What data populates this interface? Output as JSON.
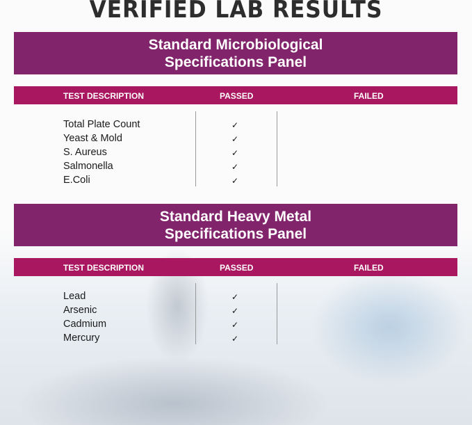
{
  "title": "VERIFIED LAB RESULTS",
  "colors": {
    "banner": "#82246b",
    "header": "#a8175f"
  },
  "columns": [
    "TEST DESCRIPTION",
    "PASSED",
    "FAILED"
  ],
  "panels": [
    {
      "title_line1": "Standard Microbiological",
      "title_line2": "Specifications Panel",
      "tests": [
        {
          "name": "Total Plate Count",
          "passed": "✓",
          "failed": ""
        },
        {
          "name": "Yeast & Mold",
          "passed": "✓",
          "failed": ""
        },
        {
          "name": "S. Aureus",
          "passed": "✓",
          "failed": ""
        },
        {
          "name": "Salmonella",
          "passed": "✓",
          "failed": ""
        },
        {
          "name": "E.Coli",
          "passed": "✓",
          "failed": ""
        }
      ]
    },
    {
      "title_line1": "Standard Heavy Metal",
      "title_line2": "Specifications Panel",
      "tests": [
        {
          "name": "Lead",
          "passed": "✓",
          "failed": ""
        },
        {
          "name": "Arsenic",
          "passed": "✓",
          "failed": ""
        },
        {
          "name": "Cadmium",
          "passed": "✓",
          "failed": ""
        },
        {
          "name": "Mercury",
          "passed": "✓",
          "failed": ""
        }
      ]
    }
  ]
}
